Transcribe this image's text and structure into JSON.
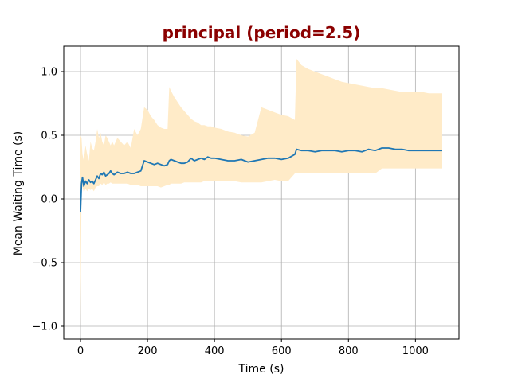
{
  "chart_data": {
    "type": "line",
    "title": "principal (period=2.5)",
    "title_color": "#8b0000",
    "xlabel": "Time (s)",
    "ylabel": "Mean Waiting Time (s)",
    "xlim": [
      -50,
      1130
    ],
    "ylim": [
      -1.1,
      1.2
    ],
    "xticks": [
      0,
      200,
      400,
      600,
      800,
      1000
    ],
    "xtick_labels": [
      "0",
      "200",
      "400",
      "600",
      "800",
      "1000"
    ],
    "yticks": [
      -1.0,
      -0.5,
      0.0,
      0.5,
      1.0
    ],
    "ytick_labels": [
      "−1.0",
      "−0.5",
      "0.0",
      "0.5",
      "1.0"
    ],
    "grid": true,
    "line_color": "#1f77b4",
    "band_color": "#ffebc8",
    "series": [
      {
        "x": [
          0,
          3,
          6,
          10,
          15,
          20,
          25,
          30,
          35,
          40,
          45,
          50,
          55,
          60,
          65,
          70,
          75,
          80,
          85,
          90,
          95,
          100,
          110,
          120,
          130,
          140,
          150,
          160,
          170,
          180,
          190,
          200,
          210,
          220,
          230,
          240,
          250,
          260,
          265,
          270,
          280,
          290,
          300,
          310,
          320,
          330,
          340,
          350,
          360,
          370,
          380,
          390,
          400,
          420,
          440,
          460,
          480,
          500,
          520,
          540,
          560,
          580,
          600,
          620,
          640,
          645,
          660,
          680,
          700,
          720,
          740,
          760,
          780,
          800,
          820,
          840,
          860,
          880,
          900,
          920,
          940,
          960,
          980,
          1000,
          1020,
          1040,
          1060,
          1080
        ],
        "y": [
          -0.1,
          0.12,
          0.17,
          0.1,
          0.14,
          0.12,
          0.15,
          0.13,
          0.14,
          0.12,
          0.15,
          0.18,
          0.16,
          0.2,
          0.19,
          0.21,
          0.18,
          0.19,
          0.2,
          0.22,
          0.2,
          0.19,
          0.21,
          0.2,
          0.2,
          0.21,
          0.2,
          0.2,
          0.21,
          0.22,
          0.3,
          0.29,
          0.28,
          0.27,
          0.28,
          0.27,
          0.26,
          0.27,
          0.3,
          0.31,
          0.3,
          0.29,
          0.28,
          0.28,
          0.29,
          0.32,
          0.3,
          0.31,
          0.32,
          0.31,
          0.33,
          0.32,
          0.32,
          0.31,
          0.3,
          0.3,
          0.31,
          0.29,
          0.3,
          0.31,
          0.32,
          0.32,
          0.31,
          0.32,
          0.35,
          0.39,
          0.38,
          0.38,
          0.37,
          0.38,
          0.38,
          0.38,
          0.37,
          0.38,
          0.38,
          0.37,
          0.39,
          0.38,
          0.4,
          0.4,
          0.39,
          0.39,
          0.38,
          0.38,
          0.38,
          0.38,
          0.38,
          0.38
        ],
        "lower": [
          -1.0,
          0.05,
          0.1,
          0.05,
          0.08,
          0.06,
          0.08,
          0.07,
          0.08,
          0.06,
          0.09,
          0.1,
          0.1,
          0.12,
          0.11,
          0.13,
          0.11,
          0.12,
          0.12,
          0.13,
          0.12,
          0.12,
          0.12,
          0.12,
          0.12,
          0.12,
          0.11,
          0.11,
          0.11,
          0.1,
          0.1,
          0.1,
          0.1,
          0.1,
          0.1,
          0.09,
          0.1,
          0.11,
          0.11,
          0.12,
          0.12,
          0.12,
          0.12,
          0.13,
          0.13,
          0.13,
          0.13,
          0.13,
          0.13,
          0.14,
          0.14,
          0.14,
          0.14,
          0.14,
          0.14,
          0.14,
          0.13,
          0.13,
          0.13,
          0.13,
          0.14,
          0.15,
          0.14,
          0.14,
          0.2,
          0.2,
          0.2,
          0.2,
          0.2,
          0.2,
          0.2,
          0.2,
          0.2,
          0.2,
          0.2,
          0.2,
          0.2,
          0.2,
          0.24,
          0.24,
          0.24,
          0.24,
          0.24,
          0.24,
          0.24,
          0.24,
          0.24,
          0.24
        ],
        "upper": [
          0.5,
          0.48,
          0.35,
          0.3,
          0.42,
          0.35,
          0.3,
          0.45,
          0.4,
          0.38,
          0.45,
          0.55,
          0.48,
          0.52,
          0.45,
          0.42,
          0.5,
          0.48,
          0.45,
          0.42,
          0.45,
          0.42,
          0.48,
          0.45,
          0.42,
          0.45,
          0.4,
          0.55,
          0.5,
          0.55,
          0.72,
          0.7,
          0.65,
          0.62,
          0.58,
          0.56,
          0.55,
          0.55,
          0.88,
          0.85,
          0.8,
          0.76,
          0.72,
          0.69,
          0.66,
          0.63,
          0.61,
          0.6,
          0.58,
          0.58,
          0.57,
          0.57,
          0.56,
          0.55,
          0.53,
          0.52,
          0.5,
          0.49,
          0.52,
          0.72,
          0.7,
          0.68,
          0.66,
          0.65,
          0.62,
          1.1,
          1.05,
          1.02,
          1.0,
          0.98,
          0.96,
          0.94,
          0.92,
          0.91,
          0.9,
          0.89,
          0.88,
          0.87,
          0.87,
          0.86,
          0.85,
          0.84,
          0.84,
          0.84,
          0.84,
          0.83,
          0.83,
          0.83
        ]
      }
    ]
  }
}
